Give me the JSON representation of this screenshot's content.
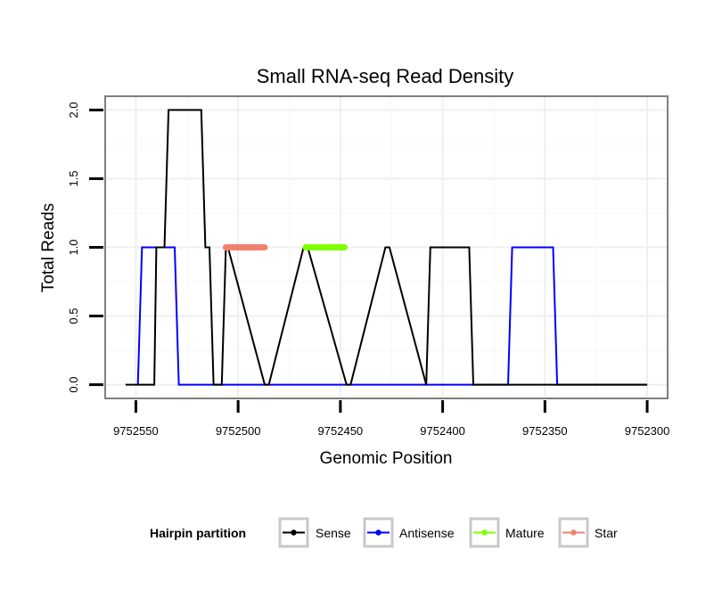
{
  "chart_data": {
    "type": "line",
    "title": "Small RNA-seq Read Density",
    "xlabel": "Genomic Position",
    "ylabel": "Total Reads",
    "x_reversed": true,
    "xlim": [
      9752565,
      9752290
    ],
    "ylim": [
      -0.1,
      2.1
    ],
    "xticks": [
      9752550,
      9752500,
      9752450,
      9752400,
      9752350,
      9752300
    ],
    "xtick_labels": [
      "9752550",
      "9752500",
      "9752450",
      "9752400",
      "9752350",
      "9752300"
    ],
    "yticks": [
      0,
      0.5,
      1,
      1.5,
      2
    ],
    "ytick_labels": [
      "0.0",
      "0.5",
      "1.0",
      "1.5",
      "2.0"
    ],
    "grid": true,
    "legend": {
      "title": "Hairpin partition",
      "position": "bottom",
      "entries": [
        "Sense",
        "Antisense",
        "Mature",
        "Star"
      ]
    },
    "series": [
      {
        "name": "Sense",
        "color": "#000000",
        "x": [
          9752555,
          9752541,
          9752540,
          9752536,
          9752534,
          9752518,
          9752516,
          9752514,
          9752512,
          9752508,
          9752506,
          9752505,
          9752487,
          9752485,
          9752468,
          9752466,
          9752447,
          9752445,
          9752428,
          9752426,
          9752408,
          9752406,
          9752387,
          9752385,
          9752369,
          9752367,
          9752347,
          9752345,
          9752300
        ],
        "y": [
          0,
          0,
          1,
          1,
          2,
          2,
          1,
          1,
          0,
          0,
          1,
          1,
          0,
          0,
          1,
          1,
          0,
          0,
          1,
          1,
          0,
          1,
          1,
          0,
          0,
          0,
          0,
          0,
          0
        ]
      },
      {
        "name": "Antisense",
        "color": "#0000ff",
        "x": [
          9752549,
          9752547,
          9752531,
          9752529,
          9752368,
          9752366,
          9752346,
          9752344,
          9752300
        ],
        "y": [
          0,
          1,
          1,
          0,
          0,
          1,
          1,
          0,
          0
        ]
      },
      {
        "name": "Mature",
        "color": "#7fff00",
        "x": [
          9752467,
          9752448
        ],
        "y": [
          1,
          1
        ]
      },
      {
        "name": "Star",
        "color": "#f08070",
        "x": [
          9752506,
          9752487
        ],
        "y": [
          1,
          1
        ]
      }
    ]
  }
}
